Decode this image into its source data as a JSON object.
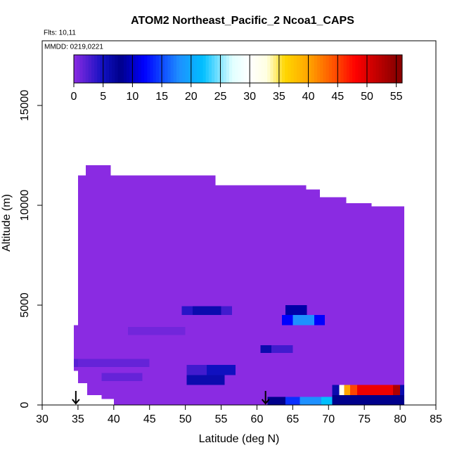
{
  "chart_data": {
    "type": "heatmap",
    "title": "ATOM2 Northeast_Pacific_2 Ncoa1_CAPS",
    "subtitle": "Flts: 10,11",
    "annotation": "MMDD: 0219,0221",
    "x_label": "Latitude (deg N)",
    "y_label": "Altitude (m)",
    "xlim": [
      30,
      85
    ],
    "ylim": [
      0,
      18240
    ],
    "xticks": [
      30,
      35,
      40,
      45,
      50,
      55,
      60,
      65,
      70,
      75,
      80,
      85
    ],
    "yticks": [
      0,
      5000,
      10000,
      15000
    ],
    "colorbar_lim": [
      0,
      56
    ],
    "colorbar_ticks": [
      0,
      5,
      10,
      15,
      20,
      25,
      30,
      35,
      40,
      45,
      50,
      55
    ],
    "colorscale": [
      [
        0,
        "#8a2be2"
      ],
      [
        5,
        "#1010c0"
      ],
      [
        8,
        "#00008b"
      ],
      [
        12,
        "#0000ff"
      ],
      [
        18,
        "#1e90ff"
      ],
      [
        22,
        "#00bfff"
      ],
      [
        27,
        "#e0ffff"
      ],
      [
        30,
        "#ffffff"
      ],
      [
        33,
        "#ffffe0"
      ],
      [
        36,
        "#ffd700"
      ],
      [
        40,
        "#ffa500"
      ],
      [
        45,
        "#ff4500"
      ],
      [
        48,
        "#ff0000"
      ],
      [
        55,
        "#8b0000"
      ]
    ],
    "cells": [
      [
        34.4,
        35,
        1700,
        4000,
        0
      ],
      [
        35,
        38.3,
        1100,
        11500,
        0
      ],
      [
        36.1,
        39.6,
        11500,
        12000,
        0
      ],
      [
        36.3,
        38.3,
        500,
        1100,
        0
      ],
      [
        38.3,
        40,
        300,
        11500,
        0
      ],
      [
        40,
        54.2,
        0,
        11500,
        0
      ],
      [
        54.2,
        66.9,
        0,
        11000,
        0
      ],
      [
        66.9,
        68.8,
        0,
        10800,
        0
      ],
      [
        68.8,
        72.5,
        0,
        10400,
        0
      ],
      [
        72.5,
        76,
        0,
        10100,
        0
      ],
      [
        76,
        80.6,
        0,
        9950,
        0
      ],
      [
        34.4,
        35,
        1900,
        2300,
        2
      ],
      [
        35,
        45,
        1900,
        2300,
        1.5
      ],
      [
        42,
        50,
        3500,
        3900,
        1
      ],
      [
        38.3,
        44,
        1200,
        1600,
        1.5
      ],
      [
        49.5,
        51,
        4500,
        4950,
        4
      ],
      [
        51,
        55,
        4500,
        4950,
        6
      ],
      [
        55,
        56.5,
        4500,
        4950,
        3
      ],
      [
        50.2,
        53,
        1500,
        2000,
        3
      ],
      [
        50.2,
        55.5,
        1000,
        1500,
        6
      ],
      [
        53,
        57,
        1500,
        2000,
        5
      ],
      [
        60.5,
        62,
        2600,
        3000,
        6
      ],
      [
        62,
        65,
        2600,
        3000,
        3
      ],
      [
        63.5,
        69.5,
        4000,
        4500,
        12
      ],
      [
        65,
        68,
        4000,
        4500,
        18
      ],
      [
        64,
        67,
        4500,
        5000,
        9
      ],
      [
        61.5,
        64,
        0,
        400,
        8
      ],
      [
        64,
        66,
        0,
        400,
        14
      ],
      [
        66,
        69,
        0,
        400,
        18
      ],
      [
        69,
        70.5,
        0,
        400,
        22
      ],
      [
        70.5,
        80.6,
        0,
        500,
        8
      ],
      [
        70.5,
        71.5,
        500,
        1000,
        6
      ],
      [
        71.5,
        72.2,
        500,
        1000,
        32
      ],
      [
        72.2,
        73,
        500,
        1000,
        40
      ],
      [
        73,
        74,
        500,
        1000,
        45
      ],
      [
        74,
        79,
        500,
        1000,
        49
      ],
      [
        79,
        80,
        500,
        1000,
        53
      ],
      [
        80,
        80.6,
        500,
        1000,
        6
      ]
    ],
    "arrows": [
      34.7,
      61.2
    ]
  }
}
